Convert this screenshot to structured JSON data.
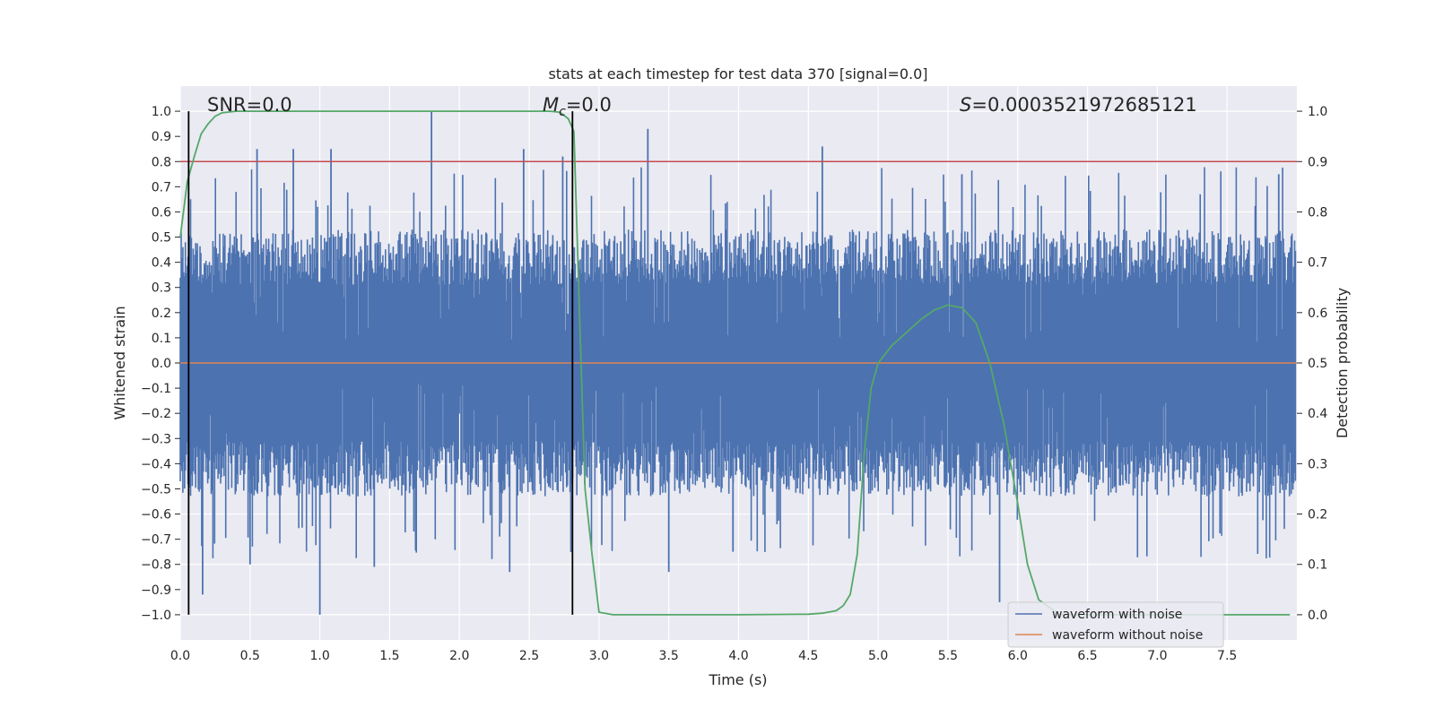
{
  "chart_data": {
    "type": "line",
    "title": "stats at each timestep for test data 370 [signal=0.0]",
    "xlabel": "Time (s)",
    "ylabel_left": "Whitened strain",
    "ylabel_right": "Detection probability",
    "xlim": [
      0.0,
      8.0
    ],
    "ylim_left": [
      -1.1,
      1.1
    ],
    "ylim_right": [
      -0.05,
      1.05
    ],
    "grid": true,
    "xticks": [
      0.0,
      0.5,
      1.0,
      1.5,
      2.0,
      2.5,
      3.0,
      3.5,
      4.0,
      4.5,
      5.0,
      5.5,
      6.0,
      6.5,
      7.0,
      7.5
    ],
    "xtick_labels": [
      "0.0",
      "0.5",
      "1.0",
      "1.5",
      "2.0",
      "2.5",
      "3.0",
      "3.5",
      "4.0",
      "4.5",
      "5.0",
      "5.5",
      "6.0",
      "6.5",
      "7.0",
      "7.5"
    ],
    "yticks_left": [
      1.0,
      0.9,
      0.8,
      0.7,
      0.6,
      0.5,
      0.4,
      0.3,
      0.2,
      0.1,
      0.0,
      -0.1,
      -0.2,
      -0.3,
      -0.4,
      -0.5,
      -0.6,
      -0.7,
      -0.8,
      -0.9,
      -1.0
    ],
    "ytick_labels_left": [
      "1.0",
      "0.9",
      "0.8",
      "0.7",
      "0.6",
      "0.5",
      "0.4",
      "0.3",
      "0.2",
      "0.1",
      "0.0",
      "−0.1",
      "−0.2",
      "−0.3",
      "−0.4",
      "−0.5",
      "−0.6",
      "−0.7",
      "−0.8",
      "−0.9",
      "−1.0"
    ],
    "yticks_right": [
      1.0,
      0.9,
      0.8,
      0.7,
      0.6,
      0.5,
      0.4,
      0.3,
      0.2,
      0.1,
      0.0
    ],
    "ytick_labels_right": [
      "1.0",
      "0.9",
      "0.8",
      "0.7",
      "0.6",
      "0.5",
      "0.4",
      "0.3",
      "0.2",
      "0.1",
      "0.0"
    ],
    "annotations": {
      "snr": "SNR=0.0",
      "mc_symbol": "M",
      "mc_sub": "c",
      "mc_value": "=0.0",
      "s_symbol": "S",
      "s_value": "=0.0003521972685121"
    },
    "vertical_lines_x": [
      0.06,
      2.81
    ],
    "vertical_lines_range": [
      -1.0,
      1.0
    ],
    "threshold": {
      "axis": "right",
      "value": 0.9
    },
    "series": [
      {
        "name": "waveform with noise",
        "axis": "left",
        "color": "#4c72b0",
        "style": "dense-noise",
        "envelope_upper_mean": 0.42,
        "envelope_lower_mean": -0.42,
        "peaks": [
          {
            "x": 0.55,
            "y": 0.85
          },
          {
            "x": 0.81,
            "y": 0.85
          },
          {
            "x": 1.08,
            "y": 0.85
          },
          {
            "x": 1.8,
            "y": 1.0
          },
          {
            "x": 2.46,
            "y": 0.85
          },
          {
            "x": 2.74,
            "y": 0.82
          },
          {
            "x": 3.35,
            "y": 0.93
          },
          {
            "x": 4.6,
            "y": 0.86
          },
          {
            "x": 5.6,
            "y": 0.75
          },
          {
            "x": 7.87,
            "y": 0.75
          }
        ],
        "troughs": [
          {
            "x": 0.16,
            "y": -0.92
          },
          {
            "x": 0.5,
            "y": -0.8
          },
          {
            "x": 1.0,
            "y": -1.0
          },
          {
            "x": 1.39,
            "y": -0.81
          },
          {
            "x": 2.36,
            "y": -0.83
          },
          {
            "x": 3.5,
            "y": -0.83
          },
          {
            "x": 3.96,
            "y": -0.75
          },
          {
            "x": 5.87,
            "y": -0.95
          }
        ]
      },
      {
        "name": "waveform without noise",
        "axis": "left",
        "color": "#dd8452",
        "x": [
          0.0,
          8.0
        ],
        "y": [
          0.0,
          0.0
        ]
      },
      {
        "name": "detection probability",
        "axis": "right",
        "color": "#55a868",
        "x": [
          0.0,
          0.05,
          0.1,
          0.15,
          0.2,
          0.25,
          0.3,
          0.4,
          0.6,
          1.0,
          2.0,
          2.5,
          2.65,
          2.72,
          2.78,
          2.82,
          2.86,
          2.9,
          2.95,
          3.0,
          3.1,
          3.5,
          4.0,
          4.5,
          4.6,
          4.7,
          4.75,
          4.8,
          4.85,
          4.9,
          4.95,
          5.0,
          5.1,
          5.2,
          5.3,
          5.4,
          5.5,
          5.6,
          5.7,
          5.8,
          5.9,
          6.0,
          6.07,
          6.15,
          6.3,
          6.5,
          7.0,
          7.5,
          7.95
        ],
        "y": [
          0.75,
          0.86,
          0.91,
          0.955,
          0.975,
          0.99,
          0.997,
          1.0,
          1.0,
          1.0,
          1.0,
          1.0,
          1.0,
          0.998,
          0.985,
          0.96,
          0.6,
          0.25,
          0.12,
          0.005,
          0.0,
          0.0,
          0.0,
          0.001,
          0.003,
          0.008,
          0.018,
          0.04,
          0.12,
          0.32,
          0.45,
          0.5,
          0.535,
          0.56,
          0.585,
          0.605,
          0.615,
          0.61,
          0.58,
          0.5,
          0.38,
          0.22,
          0.1,
          0.03,
          0.0,
          0.0,
          0.0,
          0.0,
          0.0
        ]
      }
    ],
    "legend": {
      "position": "lower-right",
      "entries": [
        {
          "label": "waveform with noise",
          "color": "#4c72b0"
        },
        {
          "label": "waveform without noise",
          "color": "#dd8452"
        }
      ]
    }
  }
}
